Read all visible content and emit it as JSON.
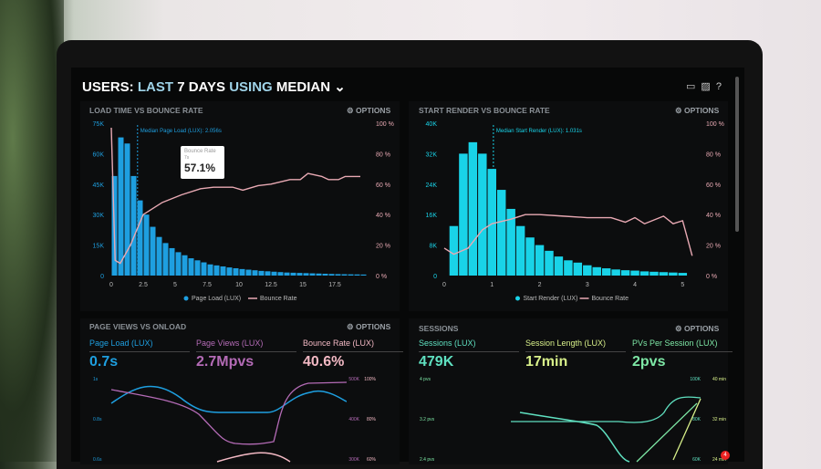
{
  "header": {
    "users": "USERS:",
    "last": "LAST",
    "days": "7 DAYS",
    "using": "USING",
    "median": "MEDIAN",
    "icons": [
      "monitor-icon",
      "image-icon",
      "help-icon"
    ]
  },
  "options_label": "OPTIONS",
  "chart_data": [
    {
      "type": "bar",
      "title": "LOAD TIME VS BOUNCE RATE",
      "legend": [
        "Page Load (LUX)",
        "Bounce Rate"
      ],
      "legend_placement": "bottom",
      "y_ticks": [
        "0",
        "15K",
        "30K",
        "45K",
        "60K",
        "75K"
      ],
      "y2_ticks": [
        "0 %",
        "20 %",
        "40 %",
        "60 %",
        "80 %",
        "100 %"
      ],
      "x_ticks": [
        "0",
        "2.5",
        "5",
        "7.5",
        "10",
        "12.5",
        "15",
        "17.5"
      ],
      "ylim": [
        0,
        75000
      ],
      "y2lim": [
        0,
        100
      ],
      "xlim": [
        0,
        20
      ],
      "bar_width": 0.5,
      "bars_x_start": 0,
      "bars": [
        49,
        68,
        65,
        49,
        37,
        30,
        24,
        19,
        16,
        13.5,
        11.5,
        10,
        8.5,
        7.5,
        6.5,
        5.5,
        5,
        4.5,
        4,
        3.6,
        3.2,
        2.9,
        2.6,
        2.3,
        2.1,
        1.9,
        1.7,
        1.5,
        1.4,
        1.3,
        1.2,
        1.1,
        1,
        0.9,
        0.8,
        0.7,
        0.65,
        0.6,
        0.55,
        0.5
      ],
      "bars_unit": "K",
      "line": [
        [
          0,
          97
        ],
        [
          0.3,
          10
        ],
        [
          0.7,
          8
        ],
        [
          1.5,
          20
        ],
        [
          2.5,
          40
        ],
        [
          4,
          48
        ],
        [
          5.5,
          53
        ],
        [
          7,
          57
        ],
        [
          8,
          58
        ],
        [
          9.5,
          58
        ],
        [
          10.3,
          56
        ],
        [
          11.5,
          59
        ],
        [
          12.5,
          60
        ],
        [
          14,
          63
        ],
        [
          14.8,
          63
        ],
        [
          15.4,
          67
        ],
        [
          16.5,
          65
        ],
        [
          17,
          63
        ],
        [
          17.8,
          63
        ],
        [
          18.3,
          65
        ],
        [
          19.5,
          65
        ]
      ],
      "annotation": "Median Page Load (LUX): 2.056s",
      "median_x": 2.056,
      "tooltip": {
        "label": "Bounce Rate",
        "sub": "7s",
        "value": "57.1%"
      },
      "bar_color": "#1e9fe0",
      "line_color": "#e8a9b3"
    },
    {
      "type": "bar",
      "title": "START RENDER VS BOUNCE RATE",
      "legend": [
        "Start Render (LUX)",
        "Bounce Rate"
      ],
      "legend_placement": "bottom",
      "y_ticks": [
        "0",
        "8K",
        "16K",
        "24K",
        "32K",
        "40K"
      ],
      "y2_ticks": [
        "0 %",
        "20 %",
        "40 %",
        "60 %",
        "80 %",
        "100 %"
      ],
      "x_ticks": [
        "0",
        "1",
        "2",
        "3",
        "4",
        "5"
      ],
      "ylim": [
        0,
        40000
      ],
      "y2lim": [
        0,
        100
      ],
      "xlim": [
        0,
        5.3
      ],
      "bar_width": 0.2,
      "bars_x_start": 0.1,
      "bars": [
        13,
        32,
        35,
        32,
        28,
        22.5,
        17.5,
        13,
        10,
        8,
        6.5,
        5,
        4,
        3.4,
        2.7,
        2.2,
        1.9,
        1.6,
        1.4,
        1.3,
        1.1,
        1,
        0.9,
        0.8,
        0.7
      ],
      "bars_unit": "K",
      "line": [
        [
          0,
          18
        ],
        [
          0.2,
          14
        ],
        [
          0.5,
          18
        ],
        [
          0.8,
          30
        ],
        [
          1,
          34
        ],
        [
          1.4,
          37
        ],
        [
          1.7,
          40
        ],
        [
          2,
          40
        ],
        [
          2.5,
          39
        ],
        [
          3,
          38
        ],
        [
          3.5,
          38
        ],
        [
          3.8,
          35
        ],
        [
          4,
          38
        ],
        [
          4.2,
          34
        ],
        [
          4.6,
          39
        ],
        [
          4.8,
          34
        ],
        [
          5,
          36
        ],
        [
          5.2,
          13
        ]
      ],
      "annotation": "Median Start Render (LUX): 1.031s",
      "median_x": 1.031,
      "bar_color": "#19d3e8",
      "line_color": "#e8a9b3"
    }
  ],
  "pageviews": {
    "title": "PAGE VIEWS VS ONLOAD",
    "stats": [
      {
        "label": "Page Load (LUX)",
        "value": "0.7s",
        "color": "#1e9fe0"
      },
      {
        "label": "Page Views (LUX)",
        "value": "2.7Mpvs",
        "color": "#b46bb6"
      },
      {
        "label": "Bounce Rate (LUX)",
        "value": "40.6%",
        "color": "#f3b9c4"
      }
    ],
    "y_ticks": [
      "1s",
      "0.8s",
      "0.6s"
    ],
    "y2_ticks": [
      "500K",
      "400K",
      "300K"
    ],
    "y3_ticks": [
      "100%",
      "80%",
      "60%"
    ]
  },
  "sessions": {
    "title": "SESSIONS",
    "stats": [
      {
        "label": "Sessions (LUX)",
        "value": "479K",
        "color": "#5fe0c0"
      },
      {
        "label": "Session Length (LUX)",
        "value": "17min",
        "color": "#d8f08a"
      },
      {
        "label": "PVs Per Session (LUX)",
        "value": "2pvs",
        "color": "#7ee8a6"
      }
    ],
    "y_ticks": [
      "4 pvs",
      "3.2 pvs",
      "2.4 pvs"
    ],
    "y2_ticks": [
      "100K",
      "80K",
      "60K"
    ],
    "y3_ticks": [
      "40 min",
      "32 min",
      "24 min"
    ]
  },
  "notification_count": "4"
}
